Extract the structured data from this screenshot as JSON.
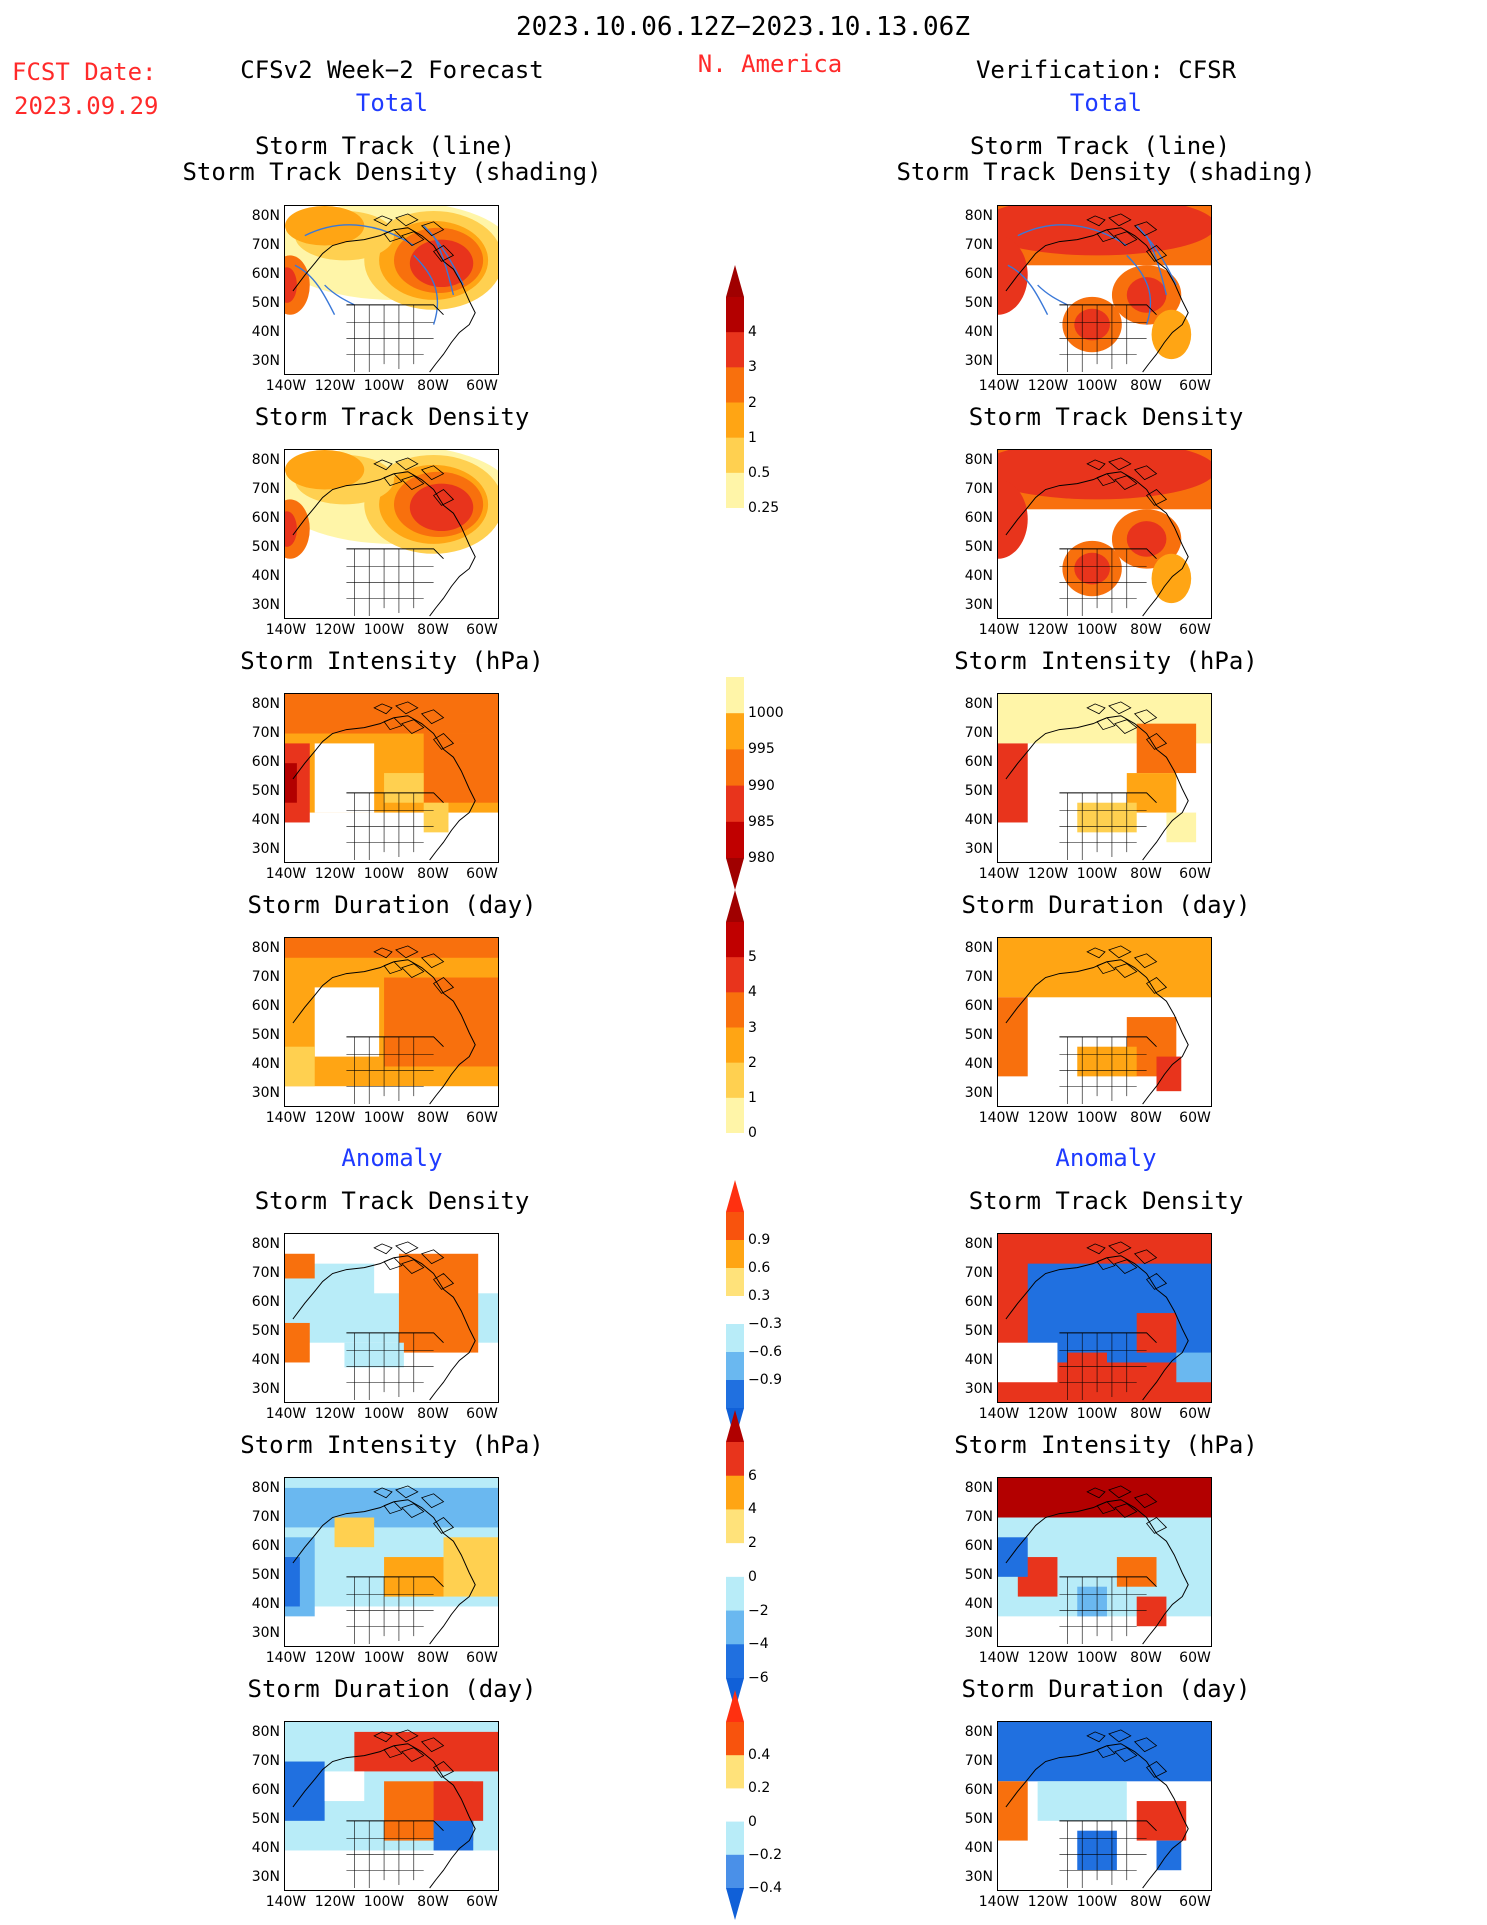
{
  "header": {
    "date_range": "2023.10.06.12Z−2023.10.13.06Z",
    "fcst_date_label": "FCST Date:",
    "fcst_date": "2023.09.29",
    "region": "N. America",
    "left_model": "CFSv2 Week−2 Forecast",
    "right_model": "Verification: CFSR",
    "left_section_total": "Total",
    "right_section_total": "Total",
    "left_section_anomaly": "Anomaly",
    "right_section_anomaly": "Anomaly"
  },
  "panel_titles": {
    "track_line": "Storm Track (line)",
    "track_shading": "Storm Track Density (shading)",
    "density": "Storm Track Density",
    "intensity": "Storm Intensity (hPa)",
    "duration": "Storm Duration (day)"
  },
  "axes": {
    "lat_ticks": [
      "80N",
      "70N",
      "60N",
      "50N",
      "40N",
      "30N"
    ],
    "lon_ticks": [
      "140W",
      "120W",
      "100W",
      "80W",
      "60W"
    ]
  },
  "colorbars": [
    {
      "id": "density_total",
      "labels": [
        "4",
        "3",
        "2",
        "1",
        "0.5",
        "0.25"
      ],
      "colors": [
        "#b30000",
        "#e8341c",
        "#f8700d",
        "#ffa514",
        "#ffd050",
        "#fff5a8"
      ],
      "top_extend": "#a00000",
      "bottom_extend": "#ffffff"
    },
    {
      "id": "intensity_total",
      "labels": [
        "1000",
        "995",
        "990",
        "985",
        "980"
      ],
      "colors": [
        "#fff5a8",
        "#ffa514",
        "#f8700d",
        "#e8341c",
        "#c00000"
      ],
      "top_extend": "#ffffff",
      "bottom_extend": "#a00000"
    },
    {
      "id": "duration_total",
      "labels": [
        "5",
        "4",
        "3",
        "2",
        "1",
        "0"
      ],
      "colors": [
        "#c00000",
        "#e8341c",
        "#f8700d",
        "#ffa514",
        "#ffd050",
        "#fff5a8"
      ],
      "top_extend": "#a00000",
      "bottom_extend": "#ffffff"
    },
    {
      "id": "density_anom",
      "labels": [
        "0.9",
        "0.6",
        "0.3",
        "−0.3",
        "−0.6",
        "−0.9"
      ],
      "colors": [
        "#f8530d",
        "#ffa514",
        "#ffe27a",
        "#ffffff",
        "#b8ecf8",
        "#6ab8f0",
        "#2070e0"
      ],
      "top_extend": "#ff3010",
      "bottom_extend": "#1060d8"
    },
    {
      "id": "intensity_anom",
      "labels": [
        "6",
        "4",
        "2",
        "0",
        "−2",
        "−4",
        "−6"
      ],
      "colors": [
        "#e8341c",
        "#ffa514",
        "#ffe27a",
        "#ffffff",
        "#b8ecf8",
        "#6ab8f0",
        "#2070e0"
      ],
      "top_extend": "#b00000",
      "bottom_extend": "#1060d8"
    },
    {
      "id": "duration_anom",
      "labels": [
        "0.4",
        "0.2",
        "0",
        "−0.2",
        "−0.4"
      ],
      "colors": [
        "#f8530d",
        "#ffe27a",
        "#ffffff",
        "#b8ecf8",
        "#4a90e8"
      ],
      "top_extend": "#ff3010",
      "bottom_extend": "#1060d8"
    }
  ],
  "colors": {
    "dark_red": "#b30000",
    "red": "#e8341c",
    "orange": "#f8700d",
    "amber": "#ffa514",
    "yellow": "#ffd050",
    "pale_yellow": "#fff5a8",
    "light_blue": "#b8ecf8",
    "mid_blue": "#6ab8f0",
    "dark_blue": "#2070e0",
    "track_line": "#3a78d8"
  }
}
